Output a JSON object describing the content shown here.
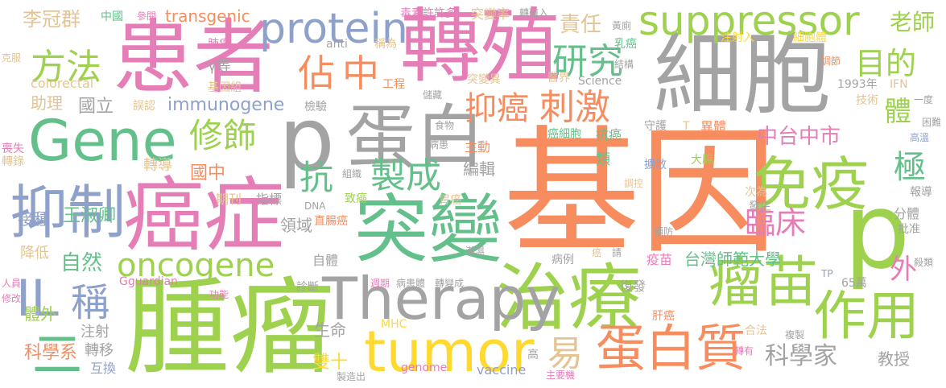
{
  "words": [
    {
      "id": "w01",
      "text": "基因",
      "color": "#f78d5e"
    },
    {
      "id": "w02",
      "text": "細胞",
      "color": "#a3a3a3"
    },
    {
      "id": "w03",
      "text": "腫瘤",
      "color": "#9ed24e"
    },
    {
      "id": "w04",
      "text": "轉殖",
      "color": "#e57db7"
    },
    {
      "id": "w05",
      "text": "患者",
      "color": "#e57db7"
    },
    {
      "id": "w06",
      "text": "突變",
      "color": "#64c08b"
    },
    {
      "id": "w07",
      "text": "治療",
      "color": "#9ed24e"
    },
    {
      "id": "w08",
      "text": "癌症",
      "color": "#e57db7"
    },
    {
      "id": "w09",
      "text": "蛋白",
      "color": "#a3a3a3"
    },
    {
      "id": "w10",
      "text": "p",
      "color": "#a3a3a3"
    },
    {
      "id": "w11",
      "text": "p",
      "color": "#9ed24e"
    },
    {
      "id": "w12",
      "text": "Therapy",
      "color": "#a3a3a3"
    },
    {
      "id": "w13",
      "text": "免疫",
      "color": "#9ed24e"
    },
    {
      "id": "w14",
      "text": "抑制",
      "color": "#8ea1cb"
    },
    {
      "id": "w15",
      "text": "tumor",
      "color": "#ffd92f"
    },
    {
      "id": "w16",
      "text": "Gene",
      "color": "#64c08b"
    },
    {
      "id": "w17",
      "text": "protein",
      "color": "#8ea1cb"
    },
    {
      "id": "w18",
      "text": "suppressor",
      "color": "#9ed24e"
    },
    {
      "id": "w19",
      "text": "瘤苗",
      "color": "#9ed24e"
    },
    {
      "id": "w20",
      "text": "作用",
      "color": "#9ed24e"
    },
    {
      "id": "w21",
      "text": "蛋白質",
      "color": "#f78d5e"
    },
    {
      "id": "w22",
      "text": "oncogene",
      "color": "#9ed24e"
    },
    {
      "id": "w23",
      "text": "IL",
      "color": "#8ea1cb"
    },
    {
      "id": "w24",
      "text": "稱",
      "color": "#8ea1cb"
    },
    {
      "id": "w25",
      "text": "佔",
      "color": "#f78d5e"
    },
    {
      "id": "w26",
      "text": "中",
      "color": "#f78d5e"
    },
    {
      "id": "w27",
      "text": "方法",
      "color": "#9ed24e"
    },
    {
      "id": "w28",
      "text": "修飾",
      "color": "#9ed24e"
    },
    {
      "id": "w29",
      "text": "研究",
      "color": "#64c08b"
    },
    {
      "id": "w30",
      "text": "目的",
      "color": "#9ed24e"
    },
    {
      "id": "w31",
      "text": "抑癌",
      "color": "#f78d5e"
    },
    {
      "id": "w32",
      "text": "刺激",
      "color": "#f78d5e"
    },
    {
      "id": "w33",
      "text": "製成",
      "color": "#64c08b"
    },
    {
      "id": "w34",
      "text": "抗",
      "color": "#64c08b"
    },
    {
      "id": "w35",
      "text": "臨床",
      "color": "#e57db7"
    },
    {
      "id": "w36",
      "text": "極",
      "color": "#64c08b"
    },
    {
      "id": "w37",
      "text": "體",
      "color": "#9ed24e"
    },
    {
      "id": "w38",
      "text": "中台中市",
      "color": "#e57db7"
    },
    {
      "id": "w39",
      "text": "外",
      "color": "#e57db7"
    },
    {
      "id": "w40",
      "text": "易",
      "color": "#e5c494"
    },
    {
      "id": "w41",
      "text": "科學家",
      "color": "#a3a3a3"
    },
    {
      "id": "w42",
      "text": "老師",
      "color": "#9ed24e"
    },
    {
      "id": "w43",
      "text": "責任",
      "color": "#e5c494"
    },
    {
      "id": "w44",
      "text": "台灣師範大學",
      "color": "#64c08b"
    },
    {
      "id": "w45",
      "text": "自然",
      "color": "#64c08b"
    },
    {
      "id": "w46",
      "text": "國立",
      "color": "#a3a3a3"
    },
    {
      "id": "w47",
      "text": "李冠群",
      "color": "#e5c494"
    },
    {
      "id": "w48",
      "text": "王淑卿",
      "color": "#64c08b"
    },
    {
      "id": "w49",
      "text": "轉導",
      "color": "#e5c494"
    },
    {
      "id": "w50",
      "text": "國中",
      "color": "#f78d5e"
    },
    {
      "id": "w51",
      "text": "助理",
      "color": "#e5c494"
    },
    {
      "id": "w52",
      "text": "接種",
      "color": "#8ea1cb"
    },
    {
      "id": "w53",
      "text": "二",
      "color": "#64c08b"
    },
    {
      "id": "w54",
      "text": "體外",
      "color": "#9ed24e"
    },
    {
      "id": "w55",
      "text": "科學系",
      "color": "#f78d5e"
    },
    {
      "id": "w56",
      "text": "轉移",
      "color": "#a3a3a3"
    },
    {
      "id": "w57",
      "text": "注射",
      "color": "#a3a3a3"
    },
    {
      "id": "w58",
      "text": "互換",
      "color": "#8ea1cb"
    },
    {
      "id": "w59",
      "text": "降低",
      "color": "#e5c494"
    },
    {
      "id": "w60",
      "text": "immunogene",
      "color": "#8ea1cb"
    },
    {
      "id": "w61",
      "text": "transgenic",
      "color": "#f78d5e"
    },
    {
      "id": "w62",
      "text": "colorectal",
      "color": "#e5c494"
    },
    {
      "id": "w63",
      "text": "基因組",
      "color": "#e5c494"
    },
    {
      "id": "w64",
      "text": "γ等",
      "color": "#a3a3a3"
    },
    {
      "id": "w65",
      "text": "肺癌",
      "color": "#e57db7"
    },
    {
      "id": "w66",
      "text": "中國",
      "color": "#64c08b"
    },
    {
      "id": "w67",
      "text": "參閱",
      "color": "#e57db7"
    },
    {
      "id": "w68",
      "text": "毒素許許多",
      "color": "#e57db7"
    },
    {
      "id": "w69",
      "text": "突變率",
      "color": "#e5c494"
    },
    {
      "id": "w70",
      "text": "轉殖入",
      "color": "#a3a3a3"
    },
    {
      "id": "w71",
      "text": "黃廁",
      "color": "#a3a3a3"
    },
    {
      "id": "w72",
      "text": "乳癌",
      "color": "#64c08b"
    },
    {
      "id": "w73",
      "text": "結構",
      "color": "#a3a3a3"
    },
    {
      "id": "w74",
      "text": "醫界",
      "color": "#e5c494"
    },
    {
      "id": "w75",
      "text": "Science",
      "color": "#a3a3a3"
    },
    {
      "id": "w76",
      "text": "注射入",
      "color": "#ffd92f"
    },
    {
      "id": "w77",
      "text": "細胞體",
      "color": "#ffd92f"
    },
    {
      "id": "w78",
      "text": "調節",
      "color": "#f78d5e"
    },
    {
      "id": "w79",
      "text": "1993年",
      "color": "#a3a3a3"
    },
    {
      "id": "w80",
      "text": "IFN",
      "color": "#e5c494"
    },
    {
      "id": "w81",
      "text": "技術",
      "color": "#e5c494"
    },
    {
      "id": "w82",
      "text": "一度",
      "color": "#a3a3a3"
    },
    {
      "id": "w83",
      "text": "anti",
      "color": "#a3a3a3"
    },
    {
      "id": "w84",
      "text": "稱為",
      "color": "#e5c494"
    },
    {
      "id": "w85",
      "text": "工程",
      "color": "#f78d5e"
    },
    {
      "id": "w86",
      "text": "儲藏",
      "color": "#a3a3a3"
    },
    {
      "id": "w87",
      "text": "突變異",
      "color": "#e5c494"
    },
    {
      "id": "w88",
      "text": "誤認",
      "color": "#e5c494"
    },
    {
      "id": "w89",
      "text": "檢驗",
      "color": "#a3a3a3"
    },
    {
      "id": "w90",
      "text": "克服",
      "color": "#e5c494"
    },
    {
      "id": "w91",
      "text": "喪失",
      "color": "#e57db7"
    },
    {
      "id": "w92",
      "text": "轉錄",
      "color": "#e5c494"
    },
    {
      "id": "w93",
      "text": "困難",
      "color": "#a3a3a3"
    },
    {
      "id": "w94",
      "text": "高溫",
      "color": "#8ea1cb"
    },
    {
      "id": "w95",
      "text": "食物",
      "color": "#a3a3a3"
    },
    {
      "id": "w96",
      "text": "病患",
      "color": "#a3a3a3"
    },
    {
      "id": "w97",
      "text": "主動",
      "color": "#f78d5e"
    },
    {
      "id": "w98",
      "text": "癌細胞",
      "color": "#64c08b"
    },
    {
      "id": "w99",
      "text": "抗癌",
      "color": "#64c08b"
    },
    {
      "id": "w100",
      "text": "守護",
      "color": "#a3a3a3"
    },
    {
      "id": "w101",
      "text": "T",
      "color": "#e5c494"
    },
    {
      "id": "w102",
      "text": "異體",
      "color": "#f78d5e"
    },
    {
      "id": "w103",
      "text": "類",
      "color": "#64c08b"
    },
    {
      "id": "w104",
      "text": "擴散",
      "color": "#8ea1cb"
    },
    {
      "id": "w105",
      "text": "大腸",
      "color": "#9ed24e"
    },
    {
      "id": "w106",
      "text": "組織",
      "color": "#a3a3a3"
    },
    {
      "id": "w107",
      "text": "編輯",
      "color": "#a3a3a3"
    },
    {
      "id": "w108",
      "text": "期刊",
      "color": "#e5c494"
    },
    {
      "id": "w109",
      "text": "指標",
      "color": "#a3a3a3"
    },
    {
      "id": "w110",
      "text": "致癌",
      "color": "#9ed24e"
    },
    {
      "id": "w111",
      "text": "胃癌",
      "color": "#e5c494"
    },
    {
      "id": "w112",
      "text": "調控",
      "color": "#e5c494"
    },
    {
      "id": "w113",
      "text": "次為",
      "color": "#e5c494"
    },
    {
      "id": "w114",
      "text": "發生",
      "color": "#a3a3a3"
    },
    {
      "id": "w115",
      "text": "報導",
      "color": "#a3a3a3"
    },
    {
      "id": "w116",
      "text": "分體",
      "color": "#a3a3a3"
    },
    {
      "id": "w117",
      "text": "批准",
      "color": "#a3a3a3"
    },
    {
      "id": "w118",
      "text": "殺類",
      "color": "#a3a3a3"
    },
    {
      "id": "w119",
      "text": "TP",
      "color": "#8ea1cb"
    },
    {
      "id": "w120",
      "text": "65萬",
      "color": "#a3a3a3"
    },
    {
      "id": "w121",
      "text": "DNA",
      "color": "#a3a3a3"
    },
    {
      "id": "w122",
      "text": "直腸癌",
      "color": "#f78d5e"
    },
    {
      "id": "w123",
      "text": "領域",
      "color": "#a3a3a3"
    },
    {
      "id": "w124",
      "text": "自體",
      "color": "#a3a3a3"
    },
    {
      "id": "w125",
      "text": "潮濕",
      "color": "#a3a3a3"
    },
    {
      "id": "w126",
      "text": "病例",
      "color": "#a3a3a3"
    },
    {
      "id": "w127",
      "text": "癌",
      "color": "#e5c494"
    },
    {
      "id": "w128",
      "text": "請",
      "color": "#a3a3a3"
    },
    {
      "id": "w129",
      "text": "疫苗",
      "color": "#e57db7"
    },
    {
      "id": "w130",
      "text": "預防",
      "color": "#a3a3a3"
    },
    {
      "id": "w131",
      "text": "Gguardian",
      "color": "#e57db7"
    },
    {
      "id": "w132",
      "text": "診斷",
      "color": "#a3a3a3"
    },
    {
      "id": "w133",
      "text": "週期",
      "color": "#e57db7"
    },
    {
      "id": "w134",
      "text": "病患體",
      "color": "#a3a3a3"
    },
    {
      "id": "w135",
      "text": "轉變成",
      "color": "#a3a3a3"
    },
    {
      "id": "w136",
      "text": "復發",
      "color": "#a3a3a3"
    },
    {
      "id": "w137",
      "text": "肝癌",
      "color": "#f78d5e"
    },
    {
      "id": "w138",
      "text": "功能",
      "color": "#e57db7"
    },
    {
      "id": "w139",
      "text": "生命",
      "color": "#a3a3a3"
    },
    {
      "id": "w140",
      "text": "MHC",
      "color": "#ffd92f"
    },
    {
      "id": "w141",
      "text": "雙十",
      "color": "#ffd92f"
    },
    {
      "id": "w142",
      "text": "高",
      "color": "#a3a3a3"
    },
    {
      "id": "w143",
      "text": "合法",
      "color": "#e5c494"
    },
    {
      "id": "w144",
      "text": "複製",
      "color": "#a3a3a3"
    },
    {
      "id": "w145",
      "text": "轉有",
      "color": "#e57db7"
    },
    {
      "id": "w146",
      "text": "教授",
      "color": "#a3a3a3"
    },
    {
      "id": "w147",
      "text": "人員",
      "color": "#e57db7"
    },
    {
      "id": "w148",
      "text": "修改",
      "color": "#e57db7"
    },
    {
      "id": "w149",
      "text": "製造出",
      "color": "#a3a3a3"
    },
    {
      "id": "w150",
      "text": "genome",
      "color": "#e57db7"
    },
    {
      "id": "w151",
      "text": "vaccine",
      "color": "#8ea1cb"
    },
    {
      "id": "w152",
      "text": "主要機",
      "color": "#e57db7"
    }
  ]
}
